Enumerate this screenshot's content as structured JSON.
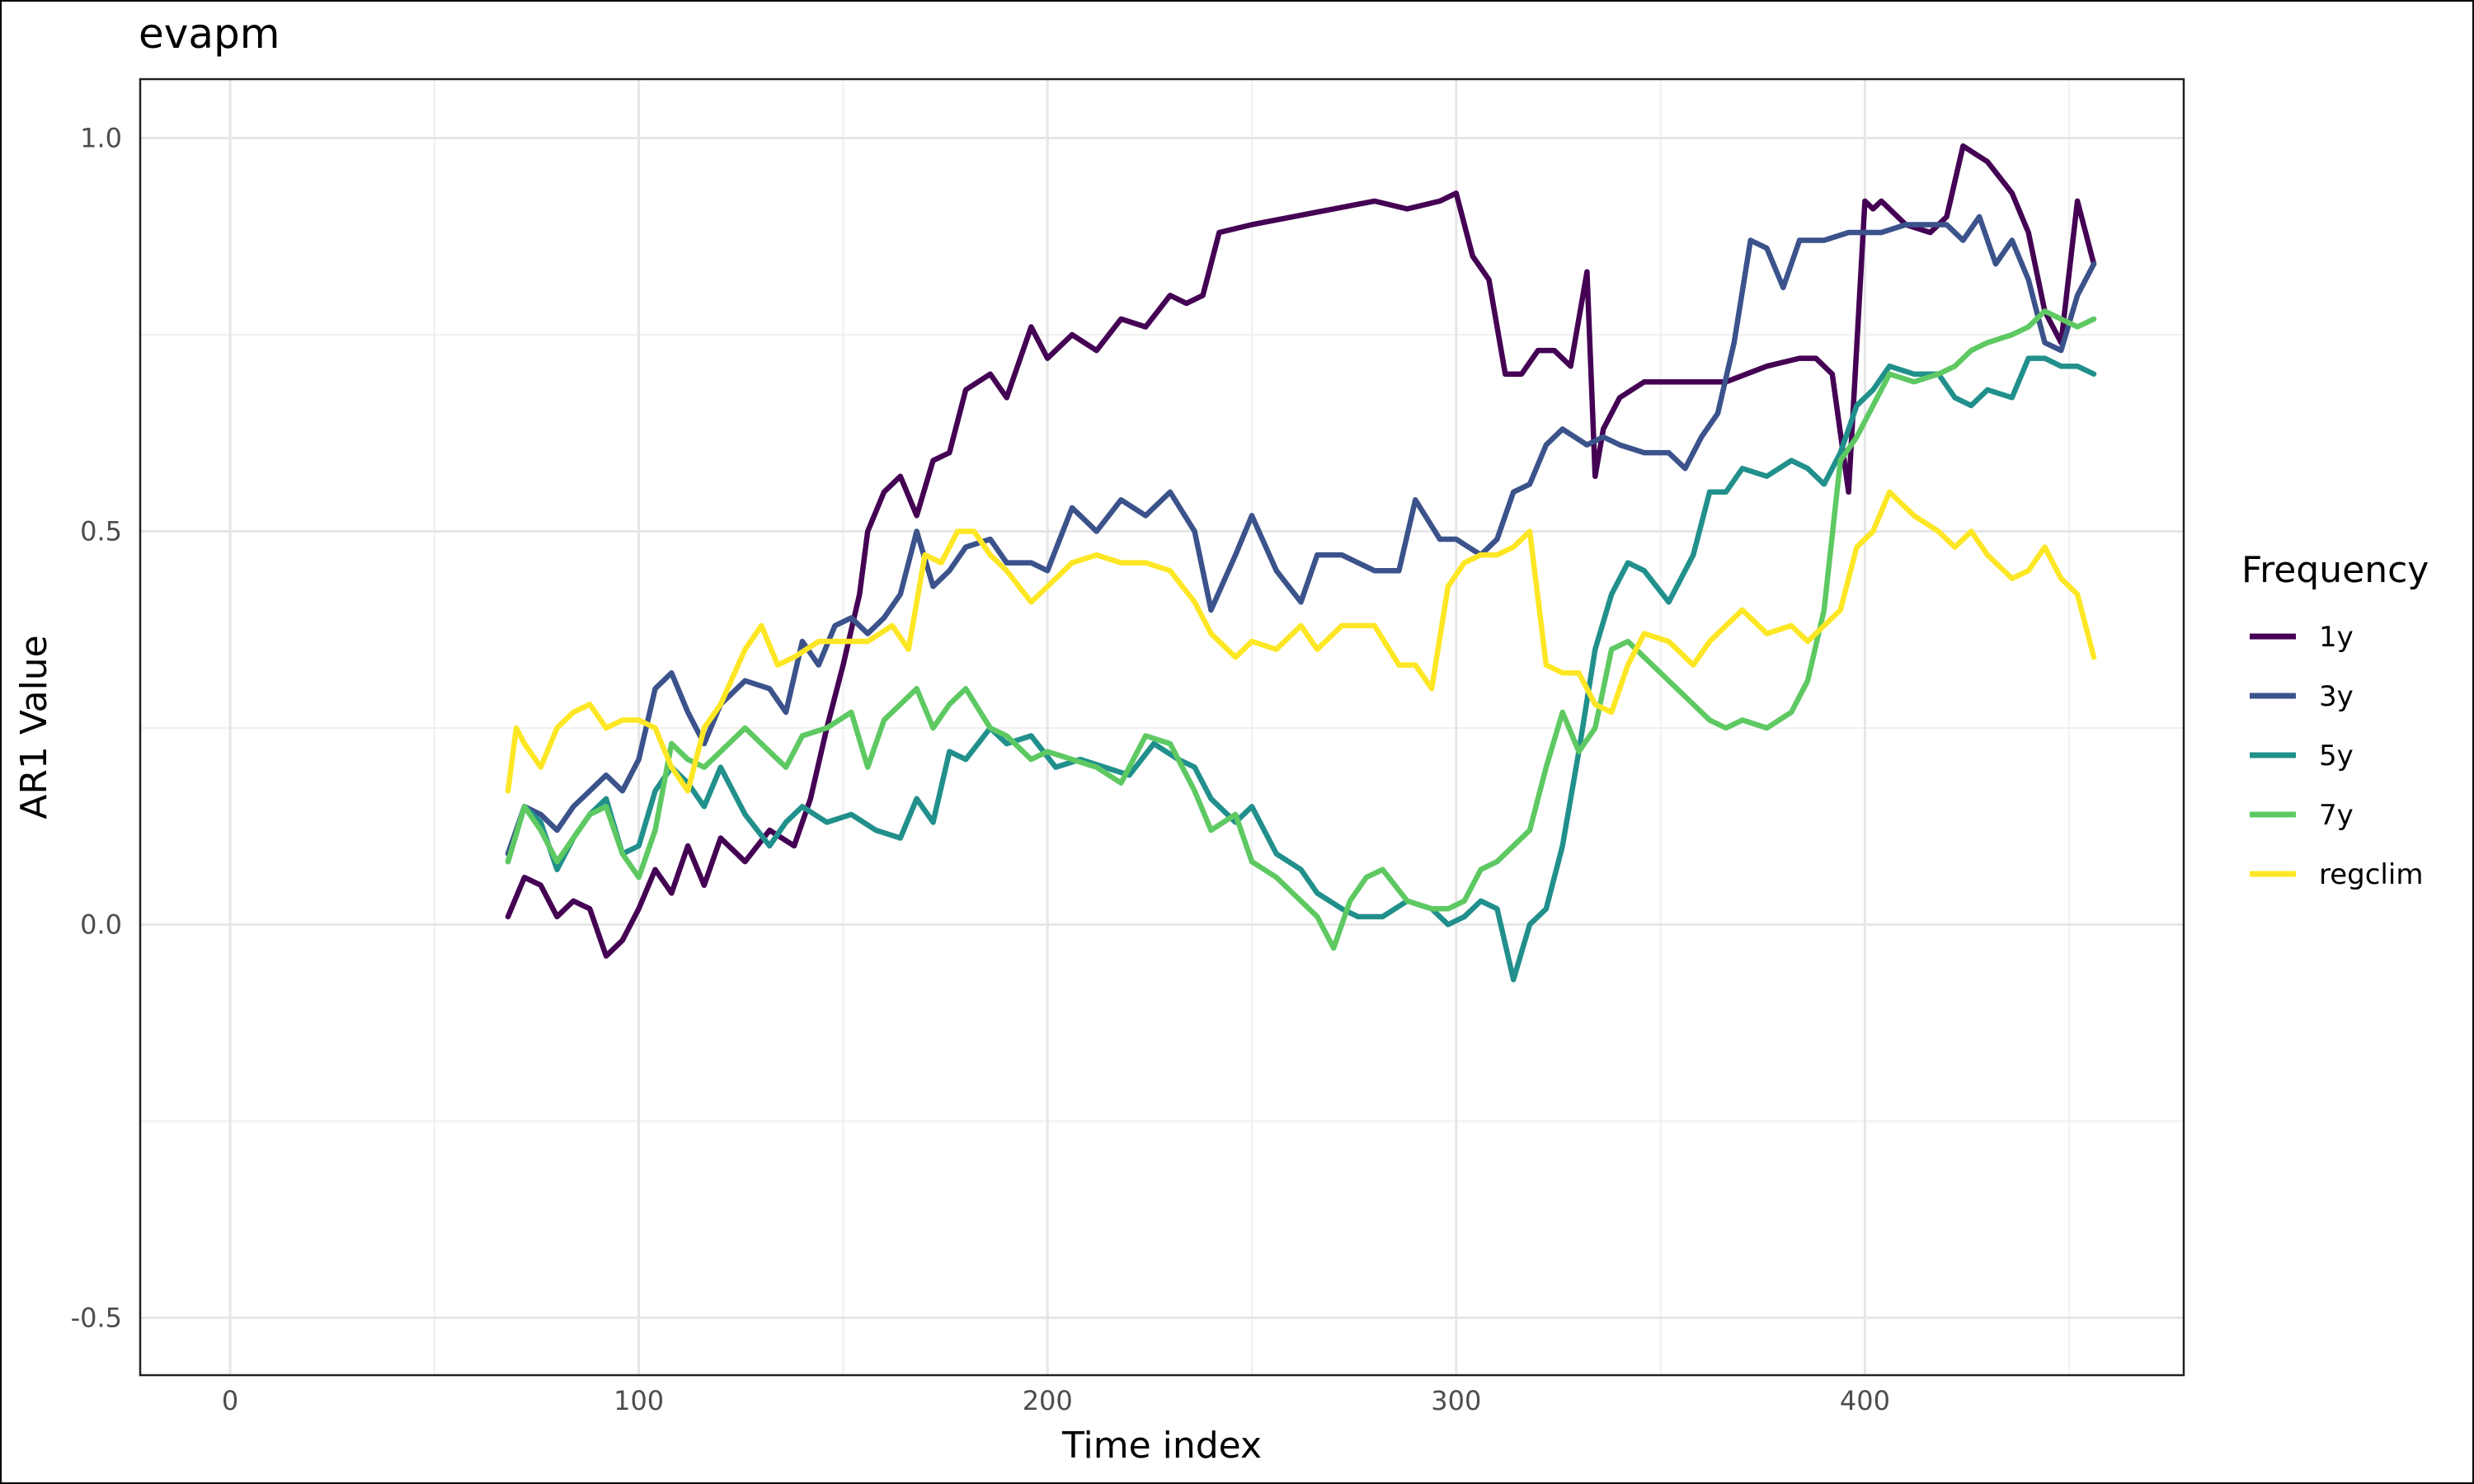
{
  "chart_data": {
    "type": "line",
    "title": "evapm",
    "xlabel": "Time index",
    "ylabel": "AR1 Value",
    "xlim": [
      -22,
      478
    ],
    "ylim": [
      -0.573,
      1.075
    ],
    "x_ticks": [
      0,
      100,
      200,
      300,
      400
    ],
    "x_tick_labels": [
      "0",
      "100",
      "200",
      "300",
      "400"
    ],
    "y_ticks": [
      -0.5,
      0.0,
      0.5,
      1.0
    ],
    "y_tick_labels": [
      "-0.5",
      "0.0",
      "0.5",
      "1.0"
    ],
    "grid": true,
    "legend": {
      "title": "Frequency",
      "position": "right"
    },
    "series": [
      {
        "name": "1y",
        "color": "#440154",
        "x": [
          68,
          72,
          76,
          80,
          84,
          88,
          92,
          96,
          100,
          104,
          108,
          112,
          116,
          120,
          126,
          132,
          138,
          142,
          146,
          150,
          154,
          156,
          160,
          164,
          168,
          172,
          176,
          180,
          186,
          190,
          196,
          200,
          206,
          212,
          218,
          224,
          230,
          234,
          238,
          242,
          250,
          260,
          270,
          280,
          288,
          296,
          300,
          304,
          308,
          312,
          316,
          320,
          324,
          328,
          332,
          334,
          336,
          340,
          346,
          356,
          366,
          376,
          384,
          388,
          392,
          396,
          400,
          402,
          404,
          410,
          416,
          420,
          424,
          430,
          436,
          440,
          444,
          448,
          452,
          456
        ],
        "values": [
          0.01,
          0.06,
          0.05,
          0.01,
          0.03,
          0.02,
          -0.04,
          -0.02,
          0.02,
          0.07,
          0.04,
          0.1,
          0.05,
          0.11,
          0.08,
          0.12,
          0.1,
          0.16,
          0.25,
          0.33,
          0.42,
          0.5,
          0.55,
          0.57,
          0.52,
          0.59,
          0.6,
          0.68,
          0.7,
          0.67,
          0.76,
          0.72,
          0.75,
          0.73,
          0.77,
          0.76,
          0.8,
          0.79,
          0.8,
          0.88,
          0.89,
          0.9,
          0.91,
          0.92,
          0.91,
          0.92,
          0.93,
          0.85,
          0.82,
          0.7,
          0.7,
          0.73,
          0.73,
          0.71,
          0.83,
          0.57,
          0.63,
          0.67,
          0.69,
          0.69,
          0.69,
          0.71,
          0.72,
          0.72,
          0.7,
          0.55,
          0.92,
          0.91,
          0.92,
          0.89,
          0.88,
          0.9,
          0.99,
          0.97,
          0.93,
          0.88,
          0.78,
          0.74,
          0.92,
          0.84
        ]
      },
      {
        "name": "3y",
        "color": "#3b528b",
        "x": [
          68,
          72,
          76,
          80,
          84,
          88,
          92,
          96,
          100,
          104,
          108,
          112,
          116,
          120,
          126,
          132,
          136,
          140,
          144,
          148,
          152,
          156,
          160,
          164,
          168,
          172,
          176,
          180,
          186,
          190,
          196,
          200,
          206,
          212,
          218,
          224,
          230,
          236,
          240,
          246,
          250,
          256,
          262,
          266,
          272,
          280,
          286,
          290,
          296,
          300,
          306,
          310,
          314,
          318,
          322,
          326,
          332,
          336,
          340,
          346,
          352,
          356,
          360,
          364,
          368,
          372,
          376,
          380,
          384,
          390,
          396,
          400,
          404,
          410,
          416,
          420,
          424,
          428,
          432,
          436,
          440,
          444,
          448,
          452,
          456
        ],
        "values": [
          0.09,
          0.15,
          0.14,
          0.12,
          0.15,
          0.17,
          0.19,
          0.17,
          0.21,
          0.3,
          0.32,
          0.27,
          0.23,
          0.28,
          0.31,
          0.3,
          0.27,
          0.36,
          0.33,
          0.38,
          0.39,
          0.37,
          0.39,
          0.42,
          0.5,
          0.43,
          0.45,
          0.48,
          0.49,
          0.46,
          0.46,
          0.45,
          0.53,
          0.5,
          0.54,
          0.52,
          0.55,
          0.5,
          0.4,
          0.47,
          0.52,
          0.45,
          0.41,
          0.47,
          0.47,
          0.45,
          0.45,
          0.54,
          0.49,
          0.49,
          0.47,
          0.49,
          0.55,
          0.56,
          0.61,
          0.63,
          0.61,
          0.62,
          0.61,
          0.6,
          0.6,
          0.58,
          0.62,
          0.65,
          0.74,
          0.87,
          0.86,
          0.81,
          0.87,
          0.87,
          0.88,
          0.88,
          0.88,
          0.89,
          0.89,
          0.89,
          0.87,
          0.9,
          0.84,
          0.87,
          0.82,
          0.74,
          0.73,
          0.8,
          0.84
        ]
      },
      {
        "name": "5y",
        "color": "#21908c",
        "x": [
          68,
          72,
          76,
          80,
          84,
          88,
          92,
          96,
          100,
          104,
          108,
          112,
          116,
          120,
          126,
          132,
          136,
          140,
          146,
          152,
          158,
          164,
          168,
          172,
          176,
          180,
          186,
          190,
          196,
          202,
          208,
          214,
          220,
          226,
          232,
          236,
          240,
          246,
          250,
          256,
          262,
          266,
          272,
          276,
          282,
          288,
          294,
          298,
          302,
          306,
          310,
          314,
          318,
          322,
          326,
          330,
          334,
          338,
          342,
          346,
          352,
          358,
          362,
          366,
          370,
          376,
          382,
          386,
          390,
          394,
          398,
          402,
          406,
          412,
          418,
          422,
          426,
          430,
          436,
          440,
          444,
          448,
          452,
          456
        ],
        "values": [
          0.08,
          0.15,
          0.13,
          0.07,
          0.11,
          0.14,
          0.16,
          0.09,
          0.1,
          0.17,
          0.2,
          0.18,
          0.15,
          0.2,
          0.14,
          0.1,
          0.13,
          0.15,
          0.13,
          0.14,
          0.12,
          0.11,
          0.16,
          0.13,
          0.22,
          0.21,
          0.25,
          0.23,
          0.24,
          0.2,
          0.21,
          0.2,
          0.19,
          0.23,
          0.21,
          0.2,
          0.16,
          0.13,
          0.15,
          0.09,
          0.07,
          0.04,
          0.02,
          0.01,
          0.01,
          0.03,
          0.02,
          0.0,
          0.01,
          0.03,
          0.02,
          -0.07,
          0.0,
          0.02,
          0.1,
          0.22,
          0.35,
          0.42,
          0.46,
          0.45,
          0.41,
          0.47,
          0.55,
          0.55,
          0.58,
          0.57,
          0.59,
          0.58,
          0.56,
          0.6,
          0.66,
          0.68,
          0.71,
          0.7,
          0.7,
          0.67,
          0.66,
          0.68,
          0.67,
          0.72,
          0.72,
          0.71,
          0.71,
          0.7
        ]
      },
      {
        "name": "7y",
        "color": "#5ec962",
        "x": [
          68,
          72,
          76,
          80,
          84,
          88,
          92,
          96,
          100,
          104,
          108,
          112,
          116,
          120,
          126,
          132,
          136,
          140,
          146,
          152,
          156,
          160,
          164,
          168,
          172,
          176,
          180,
          186,
          190,
          196,
          200,
          206,
          212,
          218,
          224,
          230,
          236,
          240,
          246,
          250,
          256,
          260,
          266,
          270,
          274,
          278,
          282,
          288,
          294,
          298,
          302,
          306,
          310,
          314,
          318,
          322,
          326,
          330,
          334,
          338,
          342,
          346,
          352,
          358,
          362,
          366,
          370,
          376,
          382,
          386,
          390,
          394,
          398,
          402,
          406,
          412,
          418,
          422,
          426,
          430,
          436,
          440,
          444,
          448,
          452,
          456
        ],
        "values": [
          0.08,
          0.15,
          0.12,
          0.08,
          0.11,
          0.14,
          0.15,
          0.09,
          0.06,
          0.12,
          0.23,
          0.21,
          0.2,
          0.22,
          0.25,
          0.22,
          0.2,
          0.24,
          0.25,
          0.27,
          0.2,
          0.26,
          0.28,
          0.3,
          0.25,
          0.28,
          0.3,
          0.25,
          0.24,
          0.21,
          0.22,
          0.21,
          0.2,
          0.18,
          0.24,
          0.23,
          0.17,
          0.12,
          0.14,
          0.08,
          0.06,
          0.04,
          0.01,
          -0.03,
          0.03,
          0.06,
          0.07,
          0.03,
          0.02,
          0.02,
          0.03,
          0.07,
          0.08,
          0.1,
          0.12,
          0.2,
          0.27,
          0.22,
          0.25,
          0.35,
          0.36,
          0.34,
          0.31,
          0.28,
          0.26,
          0.25,
          0.26,
          0.25,
          0.27,
          0.31,
          0.4,
          0.59,
          0.62,
          0.66,
          0.7,
          0.69,
          0.7,
          0.71,
          0.73,
          0.74,
          0.75,
          0.76,
          0.78,
          0.77,
          0.76,
          0.77
        ]
      },
      {
        "name": "regclim",
        "color": "#fde725",
        "x": [
          68,
          70,
          72,
          76,
          80,
          84,
          88,
          92,
          96,
          100,
          104,
          108,
          112,
          116,
          120,
          126,
          130,
          134,
          138,
          144,
          150,
          156,
          162,
          166,
          170,
          174,
          178,
          182,
          186,
          190,
          196,
          200,
          206,
          212,
          218,
          224,
          230,
          236,
          240,
          246,
          250,
          256,
          262,
          266,
          272,
          280,
          286,
          290,
          294,
          298,
          302,
          306,
          310,
          314,
          318,
          322,
          326,
          330,
          334,
          338,
          342,
          346,
          352,
          358,
          362,
          366,
          370,
          376,
          382,
          386,
          390,
          394,
          398,
          402,
          406,
          412,
          418,
          422,
          426,
          430,
          436,
          440,
          444,
          448,
          452,
          456
        ],
        "values": [
          0.17,
          0.25,
          0.23,
          0.2,
          0.25,
          0.27,
          0.28,
          0.25,
          0.26,
          0.26,
          0.25,
          0.2,
          0.17,
          0.25,
          0.28,
          0.35,
          0.38,
          0.33,
          0.34,
          0.36,
          0.36,
          0.36,
          0.38,
          0.35,
          0.47,
          0.46,
          0.5,
          0.5,
          0.47,
          0.45,
          0.41,
          0.43,
          0.46,
          0.47,
          0.46,
          0.46,
          0.45,
          0.41,
          0.37,
          0.34,
          0.36,
          0.35,
          0.38,
          0.35,
          0.38,
          0.38,
          0.33,
          0.33,
          0.3,
          0.43,
          0.46,
          0.47,
          0.47,
          0.48,
          0.5,
          0.33,
          0.32,
          0.32,
          0.28,
          0.27,
          0.33,
          0.37,
          0.36,
          0.33,
          0.36,
          0.38,
          0.4,
          0.37,
          0.38,
          0.36,
          0.38,
          0.4,
          0.48,
          0.5,
          0.55,
          0.52,
          0.5,
          0.48,
          0.5,
          0.47,
          0.44,
          0.45,
          0.48,
          0.44,
          0.42,
          0.34
        ]
      }
    ]
  }
}
